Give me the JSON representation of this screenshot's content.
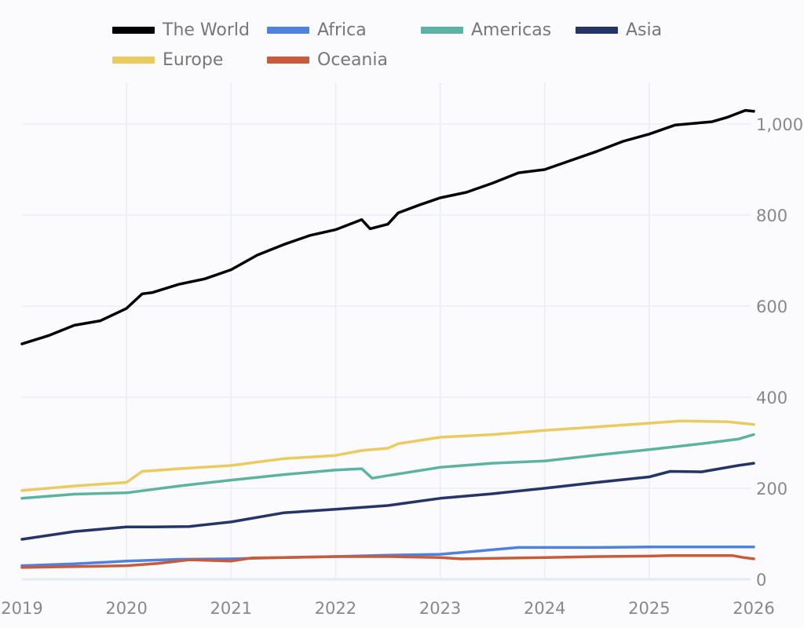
{
  "chart_data": {
    "type": "line",
    "title": "",
    "xlabel": "",
    "ylabel": "",
    "xlim": [
      2019,
      2026
    ],
    "ylim": [
      0,
      1050
    ],
    "x_ticks": [
      "2019",
      "2020",
      "2021",
      "2022",
      "2023",
      "2024",
      "2025",
      "2026"
    ],
    "y_ticks": [
      "0",
      "200",
      "400",
      "600",
      "800",
      "1,000"
    ],
    "y_axis_side": "right",
    "grid": true,
    "legend_placement": "top",
    "series": [
      {
        "name": "The World",
        "color": "#000000",
        "points": [
          [
            2019,
            517
          ],
          [
            2019.25,
            535
          ],
          [
            2019.5,
            558
          ],
          [
            2019.75,
            568
          ],
          [
            2020,
            595
          ],
          [
            2020.15,
            627
          ],
          [
            2020.25,
            630
          ],
          [
            2020.5,
            648
          ],
          [
            2020.75,
            660
          ],
          [
            2021,
            680
          ],
          [
            2021.25,
            712
          ],
          [
            2021.5,
            735
          ],
          [
            2021.75,
            755
          ],
          [
            2022,
            768
          ],
          [
            2022.25,
            790
          ],
          [
            2022.33,
            770
          ],
          [
            2022.5,
            780
          ],
          [
            2022.6,
            805
          ],
          [
            2022.8,
            822
          ],
          [
            2023,
            838
          ],
          [
            2023.25,
            850
          ],
          [
            2023.5,
            870
          ],
          [
            2023.75,
            893
          ],
          [
            2024,
            900
          ],
          [
            2024.25,
            920
          ],
          [
            2024.5,
            940
          ],
          [
            2024.75,
            962
          ],
          [
            2025,
            978
          ],
          [
            2025.25,
            998
          ],
          [
            2025.6,
            1005
          ],
          [
            2025.75,
            1015
          ],
          [
            2025.92,
            1030
          ],
          [
            2026,
            1028
          ]
        ]
      },
      {
        "name": "Africa",
        "color": "#4e82e1",
        "points": [
          [
            2019,
            30
          ],
          [
            2019.5,
            34
          ],
          [
            2020,
            40
          ],
          [
            2020.5,
            44
          ],
          [
            2021,
            45
          ],
          [
            2021.5,
            48
          ],
          [
            2022,
            50
          ],
          [
            2022.5,
            53
          ],
          [
            2023,
            55
          ],
          [
            2023.4,
            63
          ],
          [
            2023.75,
            70
          ],
          [
            2024.5,
            70
          ],
          [
            2025,
            71
          ],
          [
            2026,
            71
          ]
        ]
      },
      {
        "name": "Americas",
        "color": "#5db3a2",
        "points": [
          [
            2019,
            178
          ],
          [
            2019.5,
            187
          ],
          [
            2020,
            190
          ],
          [
            2020.5,
            205
          ],
          [
            2021,
            218
          ],
          [
            2021.5,
            230
          ],
          [
            2022,
            240
          ],
          [
            2022.25,
            243
          ],
          [
            2022.35,
            222
          ],
          [
            2022.5,
            228
          ],
          [
            2023,
            246
          ],
          [
            2023.5,
            255
          ],
          [
            2024,
            260
          ],
          [
            2024.5,
            273
          ],
          [
            2025,
            285
          ],
          [
            2025.5,
            298
          ],
          [
            2025.85,
            308
          ],
          [
            2026,
            318
          ]
        ]
      },
      {
        "name": "Asia",
        "color": "#253569",
        "points": [
          [
            2019,
            88
          ],
          [
            2019.5,
            105
          ],
          [
            2020,
            115
          ],
          [
            2020.25,
            115
          ],
          [
            2020.6,
            116
          ],
          [
            2021,
            126
          ],
          [
            2021.5,
            146
          ],
          [
            2022,
            154
          ],
          [
            2022.5,
            162
          ],
          [
            2023,
            178
          ],
          [
            2023.5,
            188
          ],
          [
            2024,
            200
          ],
          [
            2024.5,
            213
          ],
          [
            2025,
            225
          ],
          [
            2025.2,
            237
          ],
          [
            2025.5,
            236
          ],
          [
            2025.85,
            250
          ],
          [
            2026,
            255
          ]
        ]
      },
      {
        "name": "Europe",
        "color": "#ebcb5f",
        "points": [
          [
            2019,
            195
          ],
          [
            2019.5,
            205
          ],
          [
            2020,
            213
          ],
          [
            2020.15,
            237
          ],
          [
            2020.5,
            243
          ],
          [
            2021,
            250
          ],
          [
            2021.5,
            265
          ],
          [
            2022,
            272
          ],
          [
            2022.25,
            283
          ],
          [
            2022.5,
            288
          ],
          [
            2022.6,
            298
          ],
          [
            2023,
            312
          ],
          [
            2023.5,
            318
          ],
          [
            2024,
            327
          ],
          [
            2024.5,
            335
          ],
          [
            2025,
            343
          ],
          [
            2025.3,
            348
          ],
          [
            2025.75,
            346
          ],
          [
            2026,
            340
          ]
        ]
      },
      {
        "name": "Oceania",
        "color": "#c85b3c",
        "points": [
          [
            2019,
            26
          ],
          [
            2019.5,
            28
          ],
          [
            2020,
            30
          ],
          [
            2020.3,
            35
          ],
          [
            2020.6,
            43
          ],
          [
            2021,
            40
          ],
          [
            2021.2,
            47
          ],
          [
            2021.5,
            48
          ],
          [
            2022,
            50
          ],
          [
            2022.5,
            50
          ],
          [
            2023,
            48
          ],
          [
            2023.2,
            45
          ],
          [
            2024,
            48
          ],
          [
            2024.5,
            50
          ],
          [
            2025,
            51
          ],
          [
            2025.2,
            52
          ],
          [
            2025.8,
            52
          ],
          [
            2025.9,
            48
          ],
          [
            2026,
            45
          ]
        ]
      }
    ]
  }
}
